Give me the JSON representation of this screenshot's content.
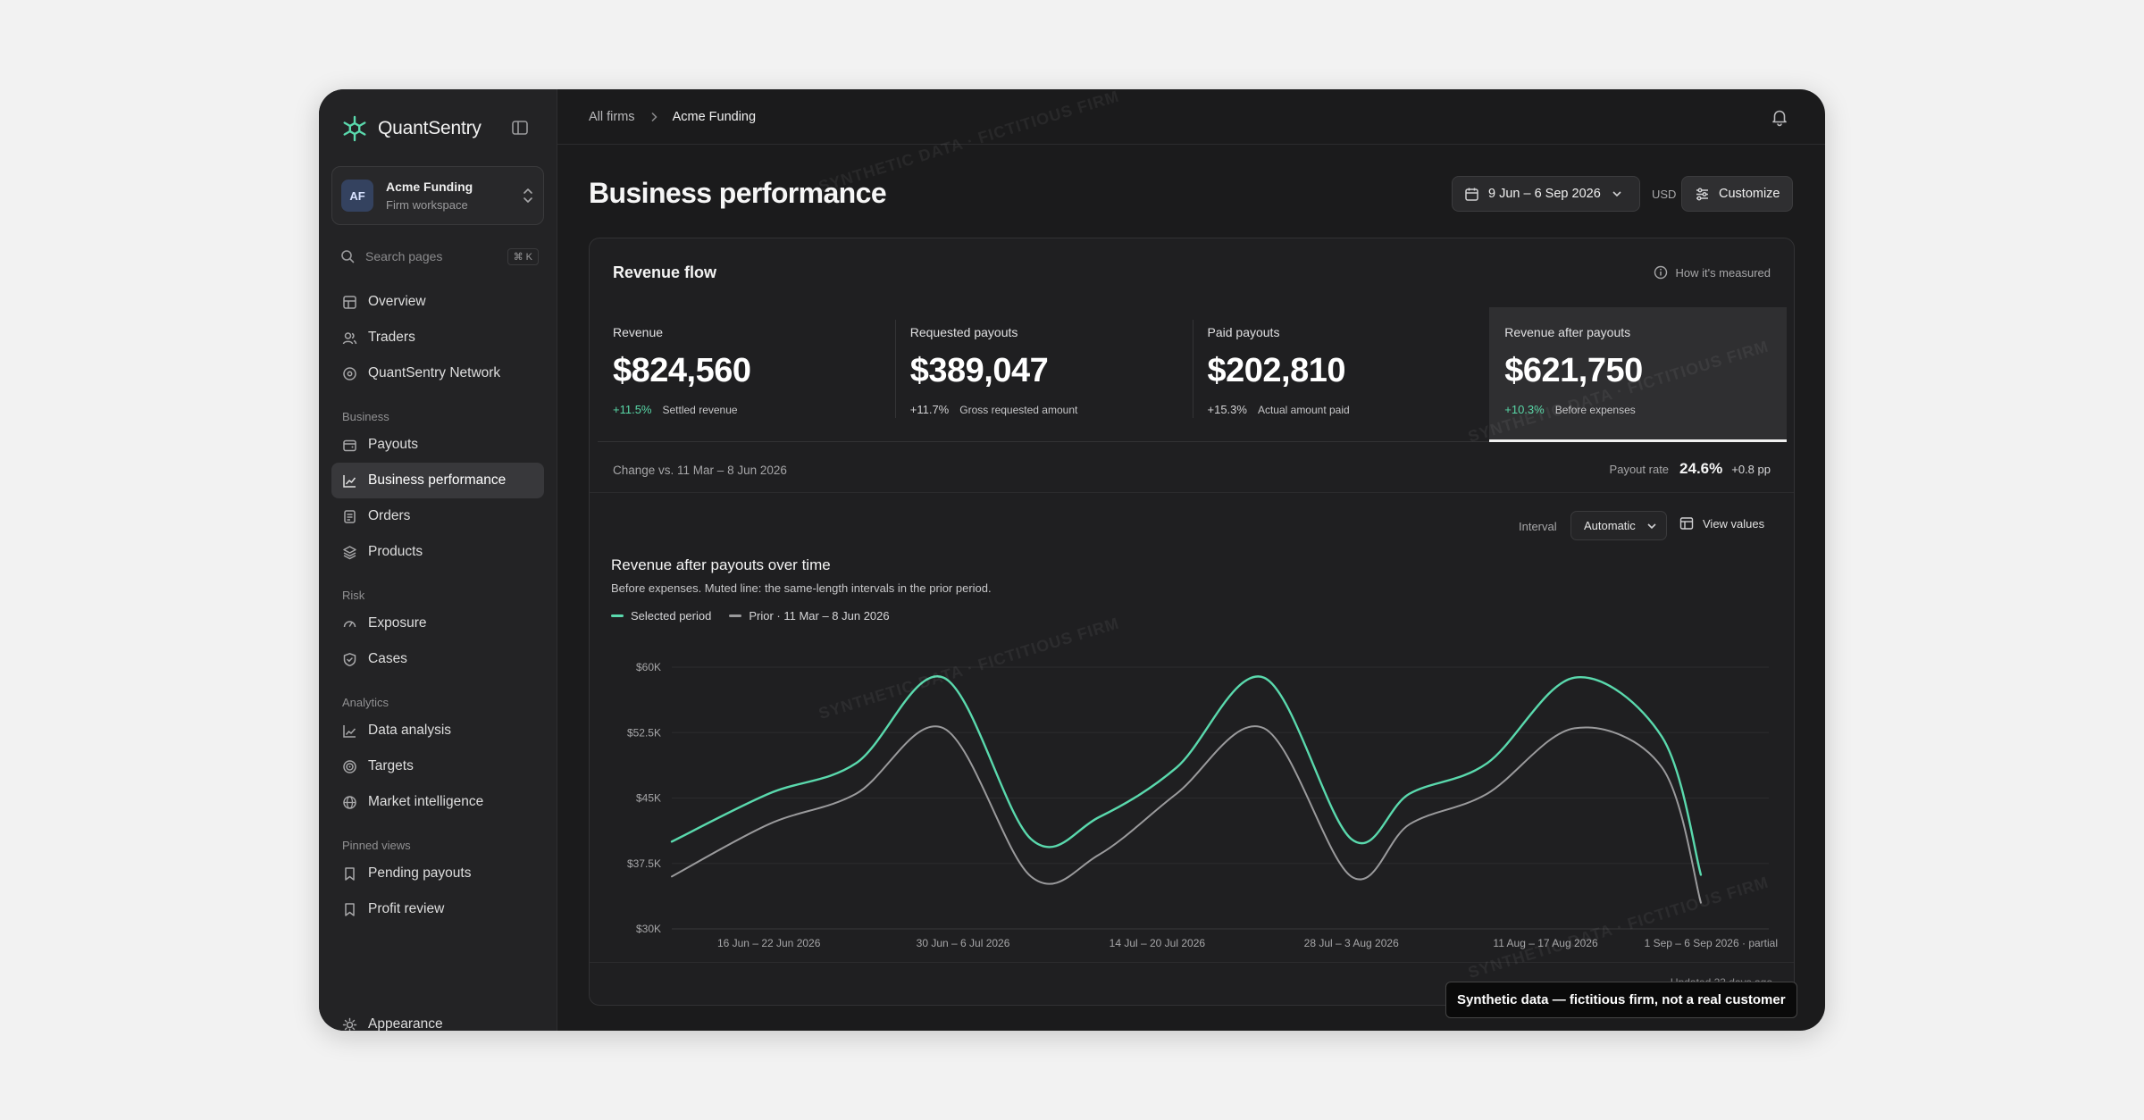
{
  "brand": {
    "name": "QuantSentry"
  },
  "workspace": {
    "initials": "AF",
    "name": "Acme Funding",
    "subtitle": "Firm workspace"
  },
  "search": {
    "placeholder": "Search pages",
    "shortcut": "⌘ K"
  },
  "nav": {
    "primary": [
      {
        "label": "Overview",
        "icon": "grid-icon"
      },
      {
        "label": "Traders",
        "icon": "users-icon"
      },
      {
        "label": "QuantSentry Network",
        "icon": "network-icon"
      }
    ],
    "sections": [
      {
        "label": "Business",
        "items": [
          {
            "label": "Payouts",
            "icon": "wallet-icon"
          },
          {
            "label": "Business performance",
            "icon": "chart-icon",
            "active": true
          },
          {
            "label": "Orders",
            "icon": "document-icon"
          },
          {
            "label": "Products",
            "icon": "layers-icon"
          }
        ]
      },
      {
        "label": "Risk",
        "items": [
          {
            "label": "Exposure",
            "icon": "gauge-icon"
          },
          {
            "label": "Cases",
            "icon": "shield-icon"
          }
        ]
      },
      {
        "label": "Analytics",
        "items": [
          {
            "label": "Data analysis",
            "icon": "line-chart-icon"
          },
          {
            "label": "Targets",
            "icon": "target-icon"
          },
          {
            "label": "Market intelligence",
            "icon": "globe-icon"
          }
        ]
      },
      {
        "label": "Pinned views",
        "items": [
          {
            "label": "Pending payouts",
            "icon": "bookmark-icon"
          },
          {
            "label": "Profit review",
            "icon": "bookmark-icon"
          }
        ]
      }
    ],
    "footer": {
      "label": "Appearance",
      "icon": "sun-icon"
    }
  },
  "breadcrumb": {
    "parent": "All firms",
    "current": "Acme Funding"
  },
  "page": {
    "title": "Business performance"
  },
  "toolbar": {
    "date_range": "9 Jun – 6 Sep 2026",
    "currency": "USD",
    "customize": "Customize"
  },
  "revenue_flow": {
    "title": "Revenue flow",
    "how_measured": "How it's measured",
    "metrics": [
      {
        "label": "Revenue",
        "value": "$824,560",
        "delta": "+11.5%",
        "delta_positive": true,
        "note": "Settled revenue"
      },
      {
        "label": "Requested payouts",
        "value": "$389,047",
        "delta": "+11.7%",
        "delta_positive": false,
        "note": "Gross requested amount"
      },
      {
        "label": "Paid payouts",
        "value": "$202,810",
        "delta": "+15.3%",
        "delta_positive": false,
        "note": "Actual amount paid"
      },
      {
        "label": "Revenue after payouts",
        "value": "$621,750",
        "delta": "+10.3%",
        "delta_positive": true,
        "note": "Before expenses",
        "selected": true
      }
    ],
    "comparison": "Change vs. 11 Mar – 8 Jun 2026",
    "payout_rate": {
      "label": "Payout rate",
      "value": "24.6%",
      "delta": "+0.8 pp"
    }
  },
  "chart_controls": {
    "interval_label": "Interval",
    "interval_value": "Automatic",
    "view_values": "View values"
  },
  "chart_data": {
    "type": "line",
    "title": "Revenue after payouts over time",
    "subtitle": "Before expenses. Muted line: the same-length intervals in the prior period.",
    "ylim": [
      30000,
      60000
    ],
    "yticks": [
      {
        "value": 30000,
        "label": "$30K"
      },
      {
        "value": 37500,
        "label": "$37.5K"
      },
      {
        "value": 45000,
        "label": "$45K"
      },
      {
        "value": 52500,
        "label": "$52.5K"
      },
      {
        "value": 60000,
        "label": "$60K"
      }
    ],
    "x_labels": [
      {
        "x": 1,
        "label": "16 Jun – 22 Jun 2026"
      },
      {
        "x": 3,
        "label": "30 Jun – 6 Jul 2026"
      },
      {
        "x": 5,
        "label": "14 Jul – 20 Jul 2026"
      },
      {
        "x": 7,
        "label": "28 Jul – 3 Aug 2026"
      },
      {
        "x": 9,
        "label": "11 Aug – 17 Aug 2026"
      },
      {
        "x": 11,
        "label": "1 Sep – 6 Sep 2026 · partial"
      }
    ],
    "grid": true,
    "legend": "top-left",
    "series": [
      {
        "name": "Selected period",
        "color": "#5ad9ad",
        "x": [
          0,
          1,
          1.9,
          2.8,
          3.7,
          4.4,
          5.2,
          6.1,
          7,
          7.6,
          8.4,
          9.3,
          10.2,
          10.6,
          11.3
        ],
        "values": [
          40000,
          45500,
          49000,
          58800,
          40300,
          42800,
          48500,
          58800,
          40300,
          45500,
          49000,
          58800,
          52000,
          36200,
          36200
        ]
      },
      {
        "name": "Prior · 11 Mar – 8 Jun 2026",
        "color": "#9a9a9c",
        "x": [
          0,
          1,
          1.9,
          2.8,
          3.7,
          4.4,
          5.2,
          6.1,
          7,
          7.6,
          8.4,
          9.3,
          10.2,
          10.6,
          11.3
        ],
        "values": [
          36000,
          42000,
          45500,
          53000,
          36000,
          38500,
          45500,
          53000,
          36000,
          42000,
          45500,
          53000,
          48500,
          33000,
          33000
        ]
      }
    ]
  },
  "footer_note": {
    "updated": "Updated 23 days ago"
  },
  "toast": {
    "text": "Synthetic data — fictitious firm, not a real customer"
  },
  "watermark": {
    "text": "SYNTHETIC DATA · FICTITIOUS FIRM"
  },
  "colors": {
    "accent": "#5ad9ad",
    "muted_line": "#9a9a9c",
    "background": "#1b1b1c",
    "sidebar": "#232325"
  }
}
